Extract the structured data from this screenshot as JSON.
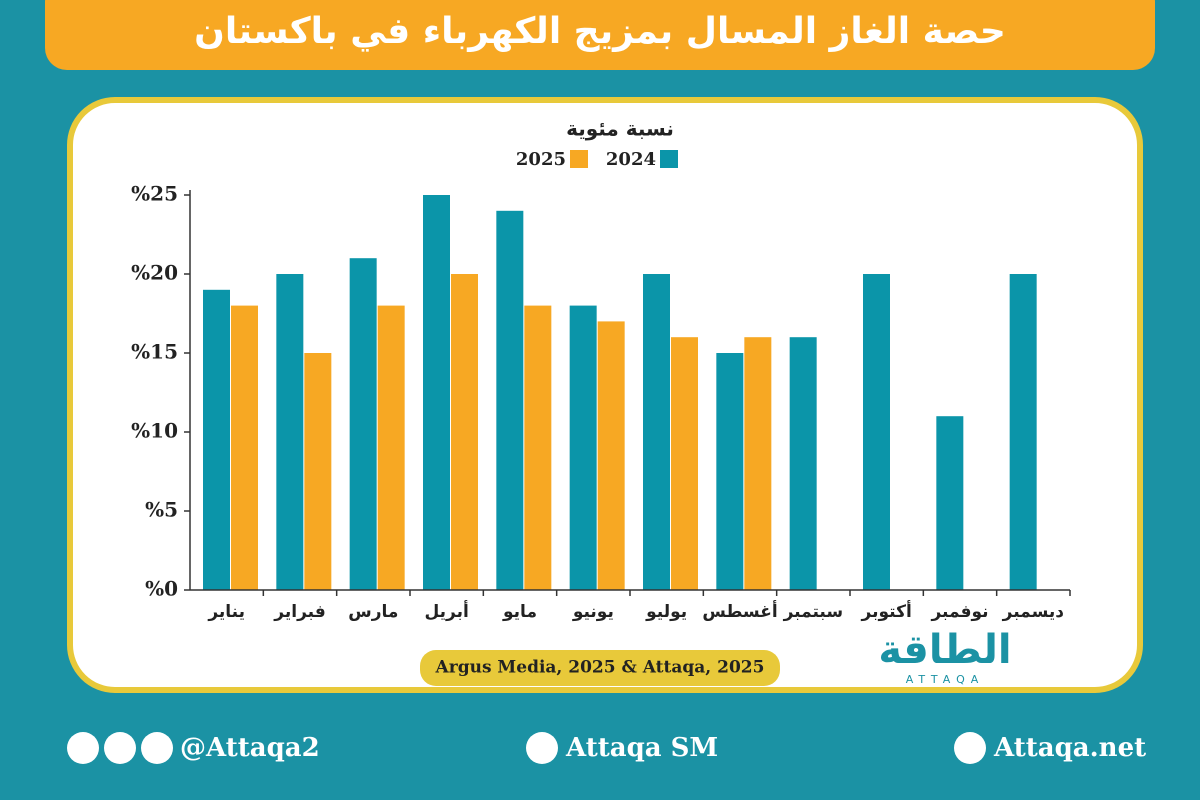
{
  "chart_data": {
    "type": "bar",
    "title": "حصة الغاز المسال بمزيج الكهرباء في باكستان",
    "y_label": "نسبة مئوية",
    "source": "Argus Media, 2025 & Attaqa, 2025",
    "categories": [
      "يناير",
      "فبراير",
      "مارس",
      "أبريل",
      "مايو",
      "يونيو",
      "يوليو",
      "أغسطس",
      "سبتمبر",
      "أكتوبر",
      "نوفمبر",
      "ديسمبر"
    ],
    "series": [
      {
        "name": "2024",
        "color": "#0b95a9",
        "values": [
          19,
          20,
          21,
          25,
          24,
          18,
          20,
          15,
          16,
          20,
          11,
          20
        ]
      },
      {
        "name": "2025",
        "color": "#f7a823",
        "values": [
          18,
          15,
          18,
          20,
          18,
          17,
          16,
          16,
          null,
          null,
          null,
          null
        ]
      }
    ],
    "ylim": [
      0,
      25
    ],
    "yticks": [
      {
        "value": 0,
        "label": "%0"
      },
      {
        "value": 5,
        "label": "%5"
      },
      {
        "value": 10,
        "label": "%10"
      },
      {
        "value": 15,
        "label": "%15"
      },
      {
        "value": 20,
        "label": "%20"
      },
      {
        "value": 25,
        "label": "%25"
      }
    ]
  },
  "footer": {
    "twitter": "@Attaqa2",
    "youtube": "Attaqa SM",
    "website": "Attaqa.net"
  },
  "logo": {
    "arabic": "الطاقة",
    "latin": "ATTAQA"
  }
}
